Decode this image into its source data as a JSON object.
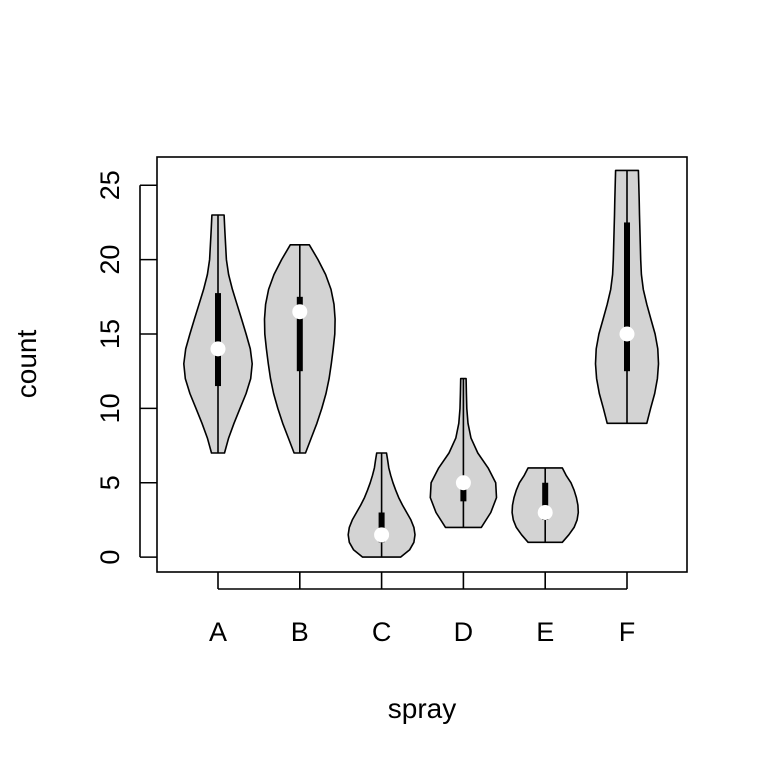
{
  "chart_data": {
    "type": "violin",
    "xlabel": "spray",
    "ylabel": "count",
    "categories": [
      "A",
      "B",
      "C",
      "D",
      "E",
      "F"
    ],
    "y_ticks": [
      "0",
      "5",
      "10",
      "15",
      "20",
      "25"
    ],
    "y_tick_values": [
      0,
      5,
      10,
      15,
      20,
      25
    ],
    "ylim": [
      -1,
      26.9
    ],
    "grid": false,
    "violins": [
      {
        "category": "A",
        "min": 7,
        "q1": 11.5,
        "median": 14,
        "q3": 17.75,
        "max": 23,
        "profile": [
          [
            7,
            0.17
          ],
          [
            8,
            0.28
          ],
          [
            9,
            0.42
          ],
          [
            10,
            0.58
          ],
          [
            11,
            0.74
          ],
          [
            12,
            0.86
          ],
          [
            13,
            0.9
          ],
          [
            14,
            0.85
          ],
          [
            15,
            0.74
          ],
          [
            16,
            0.62
          ],
          [
            17,
            0.5
          ],
          [
            18,
            0.38
          ],
          [
            19,
            0.28
          ],
          [
            20,
            0.22
          ],
          [
            21,
            0.2
          ],
          [
            22,
            0.18
          ],
          [
            23,
            0.16
          ]
        ]
      },
      {
        "category": "B",
        "min": 7,
        "q1": 12.5,
        "median": 16.5,
        "q3": 17.5,
        "max": 21,
        "profile": [
          [
            7,
            0.15
          ],
          [
            8,
            0.3
          ],
          [
            9,
            0.45
          ],
          [
            10,
            0.58
          ],
          [
            11,
            0.69
          ],
          [
            12,
            0.77
          ],
          [
            13,
            0.83
          ],
          [
            14,
            0.88
          ],
          [
            15,
            0.92
          ],
          [
            16,
            0.93
          ],
          [
            17,
            0.9
          ],
          [
            18,
            0.82
          ],
          [
            19,
            0.68
          ],
          [
            20,
            0.48
          ],
          [
            21,
            0.25
          ]
        ]
      },
      {
        "category": "C",
        "min": 0,
        "q1": 1,
        "median": 1.5,
        "q3": 3,
        "max": 7,
        "profile": [
          [
            0,
            0.5
          ],
          [
            0.5,
            0.74
          ],
          [
            1,
            0.85
          ],
          [
            1.5,
            0.88
          ],
          [
            2,
            0.85
          ],
          [
            2.5,
            0.77
          ],
          [
            3,
            0.66
          ],
          [
            3.5,
            0.55
          ],
          [
            4,
            0.45
          ],
          [
            4.5,
            0.37
          ],
          [
            5,
            0.3
          ],
          [
            5.5,
            0.24
          ],
          [
            6,
            0.19
          ],
          [
            6.5,
            0.16
          ],
          [
            7,
            0.13
          ]
        ]
      },
      {
        "category": "D",
        "min": 2,
        "q1": 3.75,
        "median": 5,
        "q3": 5,
        "max": 12,
        "profile": [
          [
            2,
            0.47
          ],
          [
            3,
            0.72
          ],
          [
            4,
            0.87
          ],
          [
            5,
            0.85
          ],
          [
            6,
            0.65
          ],
          [
            7,
            0.38
          ],
          [
            8,
            0.2
          ],
          [
            9,
            0.12
          ],
          [
            10,
            0.09
          ],
          [
            11,
            0.08
          ],
          [
            12,
            0.07
          ]
        ]
      },
      {
        "category": "E",
        "min": 1,
        "q1": 2.5,
        "median": 3,
        "q3": 5,
        "max": 6,
        "profile": [
          [
            1,
            0.45
          ],
          [
            1.5,
            0.62
          ],
          [
            2,
            0.76
          ],
          [
            2.5,
            0.84
          ],
          [
            3,
            0.87
          ],
          [
            3.5,
            0.86
          ],
          [
            4,
            0.82
          ],
          [
            4.5,
            0.76
          ],
          [
            5,
            0.68
          ],
          [
            5.5,
            0.55
          ],
          [
            6,
            0.45
          ]
        ]
      },
      {
        "category": "F",
        "min": 9,
        "q1": 12.5,
        "median": 15,
        "q3": 22.5,
        "max": 26,
        "profile": [
          [
            9,
            0.52
          ],
          [
            10,
            0.62
          ],
          [
            11,
            0.73
          ],
          [
            12,
            0.8
          ],
          [
            13,
            0.83
          ],
          [
            14,
            0.81
          ],
          [
            15,
            0.74
          ],
          [
            16,
            0.63
          ],
          [
            17,
            0.52
          ],
          [
            18,
            0.43
          ],
          [
            19,
            0.38
          ],
          [
            20,
            0.36
          ],
          [
            21,
            0.35
          ],
          [
            22,
            0.34
          ],
          [
            23,
            0.33
          ],
          [
            24,
            0.32
          ],
          [
            25,
            0.31
          ],
          [
            26,
            0.3
          ]
        ]
      }
    ],
    "colors": {
      "fill": "#d3d3d3",
      "stroke": "#000000",
      "box": "#000000",
      "median": "#ffffff"
    }
  }
}
